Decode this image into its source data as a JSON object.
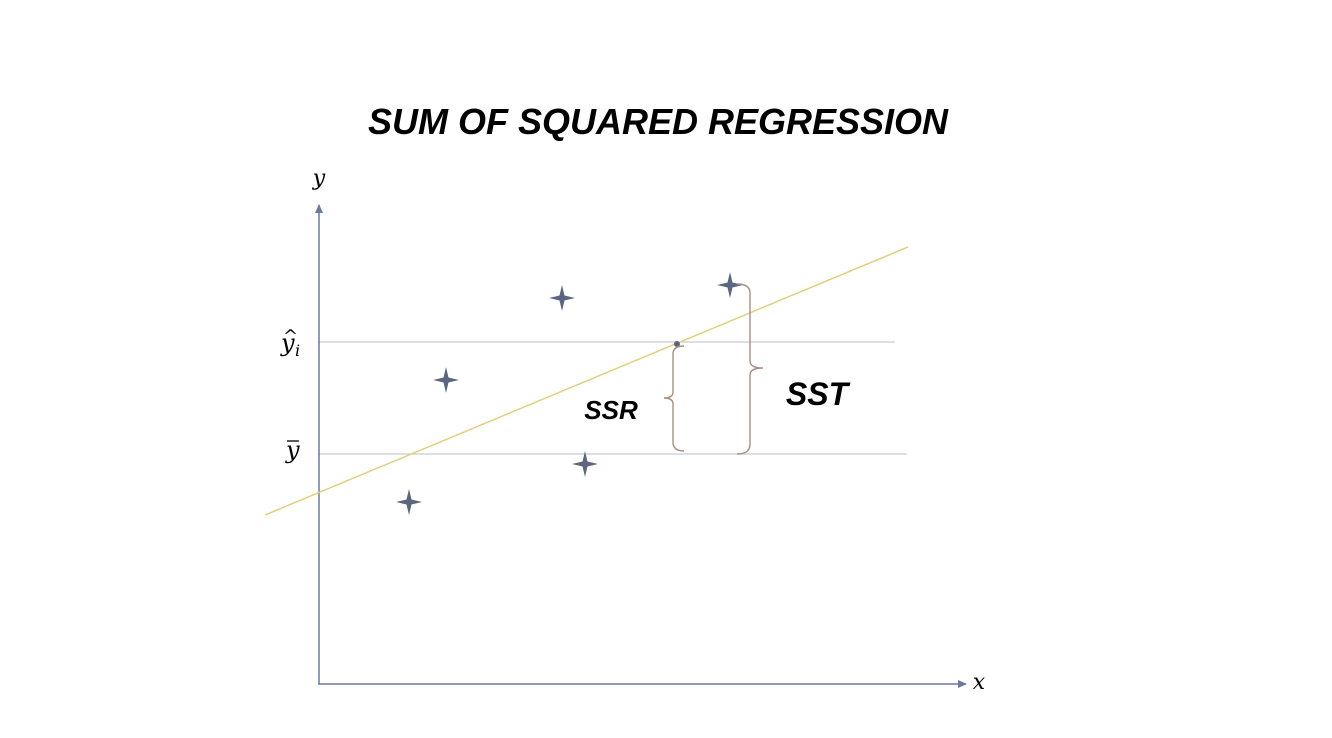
{
  "title": "SUM OF SQUARED REGRESSION",
  "axes": {
    "y_label": "y",
    "x_label": "x",
    "axis_color": "#6b7aa1"
  },
  "reference_lines": {
    "y_hat_label_base": "y",
    "y_hat_hat": "^",
    "y_hat_subscript": "i",
    "y_bar_label_base": "y",
    "y_bar_bar": "‾",
    "line_color": "#c9ccd3"
  },
  "regression_line": {
    "color": "#e3cf7c"
  },
  "points": {
    "marker": "four-point-star",
    "color": "#5b6680",
    "count": 6
  },
  "brackets": {
    "ssr_label": "SSR",
    "sst_label": "SST",
    "color": "#a98e86"
  }
}
